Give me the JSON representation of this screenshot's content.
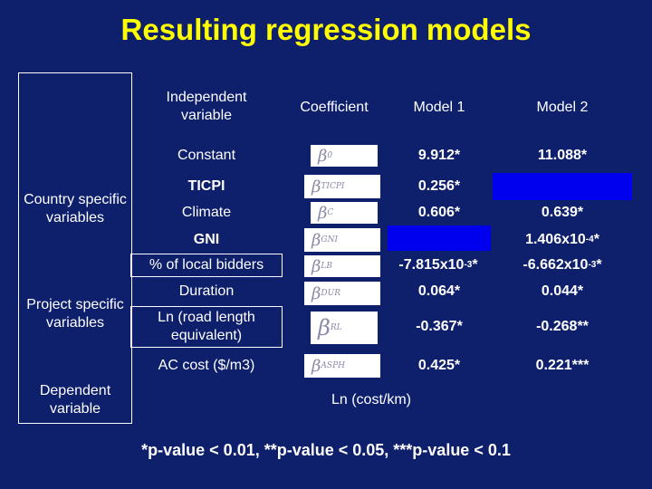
{
  "title": "Resulting regression models",
  "headers": {
    "independent_variable": "Independent variable",
    "coefficient": "Coefficient",
    "model1": "Model 1",
    "model2": "Model 2"
  },
  "groups": {
    "country": "Country specific variables",
    "project": "Project specific variables",
    "dependent": "Dependent variable"
  },
  "rows": [
    {
      "variable": "Constant",
      "beta": "β",
      "sub": "0",
      "model1": "9.912*",
      "model2": "11.088*"
    },
    {
      "variable": "TICPI",
      "beta": "β",
      "sub": "TICPI",
      "model1": "0.256*",
      "model2": ""
    },
    {
      "variable": "Climate",
      "beta": "β",
      "sub": "C",
      "model1": "0.606*",
      "model2": "0.639*"
    },
    {
      "variable": "GNI",
      "beta": "β",
      "sub": "GNI",
      "model1": "",
      "model2_base": "1.406x10",
      "model2_exp": "-4",
      "model2_suffix": "*"
    },
    {
      "variable": "% of local bidders",
      "beta": "β",
      "sub": "LB",
      "model1_base": "-7.815x10",
      "model1_exp": "-3",
      "model1_suffix": "*",
      "model2_base": "-6.662x10",
      "model2_exp": "-3",
      "model2_suffix": "*"
    },
    {
      "variable": "Duration",
      "beta": "β",
      "sub": "DUR",
      "model1": "0.064*",
      "model2": "0.044*"
    },
    {
      "variable": "Ln (road length equivalent)",
      "beta": "β",
      "sub": "RL",
      "model1": "-0.367*",
      "model2": "-0.268**"
    },
    {
      "variable": "AC cost ($/m3)",
      "beta": "β",
      "sub": "ASPH",
      "model1": "0.425*",
      "model2": "0.221***"
    }
  ],
  "dependent_value": "Ln (cost/km)",
  "footnote": "*p-value < 0.01, **p-value < 0.05, ***p-value < 0.1",
  "colors": {
    "background": "#0e1f6b",
    "title": "#ffff00",
    "excluded_cell": "#0000ee"
  }
}
